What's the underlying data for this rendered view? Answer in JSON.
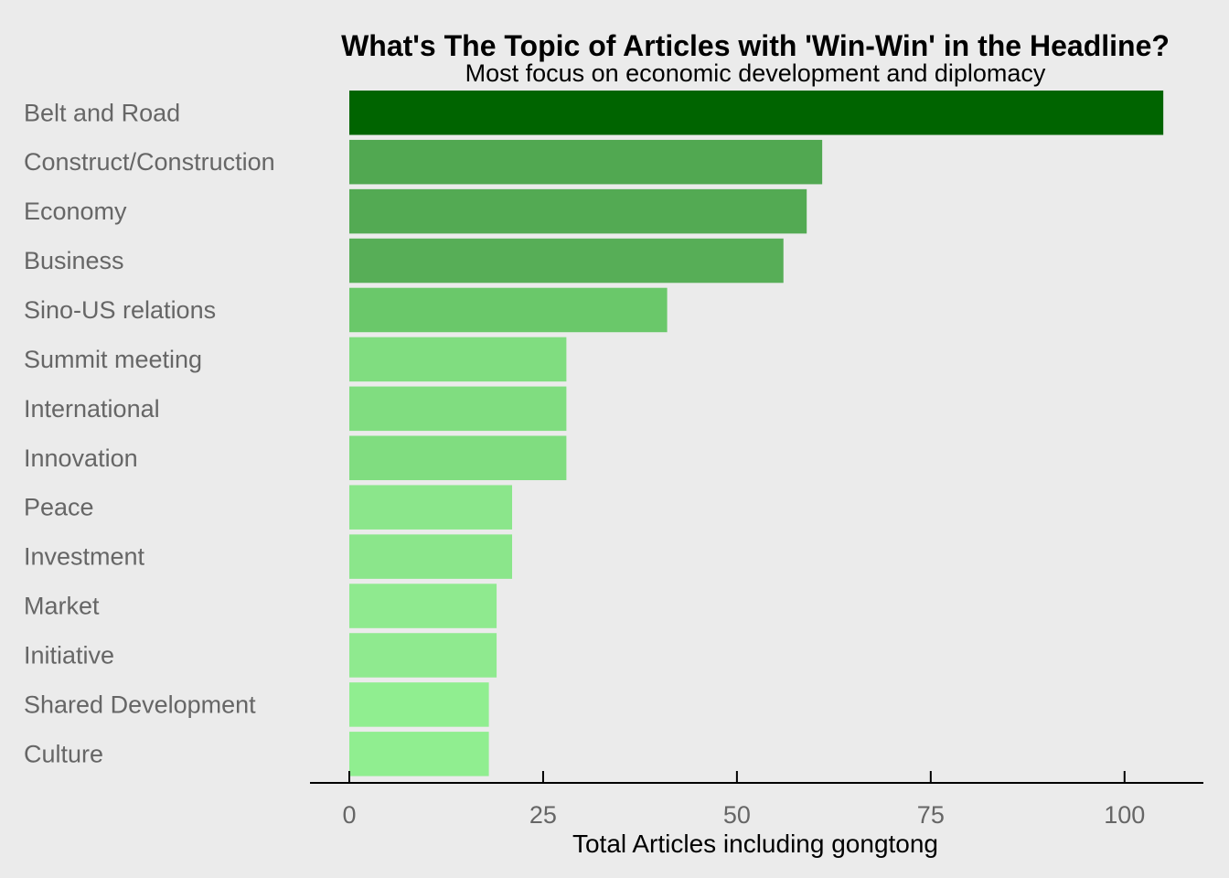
{
  "chart_data": {
    "type": "bar",
    "orientation": "horizontal",
    "title": "What's The Topic of Articles with 'Win-Win' in the Headline?",
    "subtitle": "Most focus on economic development and diplomacy",
    "xlabel": "Total Articles including gongtong",
    "ylabel": "",
    "xlim": [
      -5,
      110
    ],
    "x_ticks": [
      0,
      25,
      50,
      75,
      100
    ],
    "grid": false,
    "legend": "none",
    "categories": [
      "Belt and Road",
      "Construct/Construction",
      "Economy",
      "Business",
      "Sino-US relations",
      "Summit meeting",
      "International",
      "Innovation",
      "Peace",
      "Investment",
      "Market",
      "Initiative",
      "Shared Development",
      "Culture"
    ],
    "values": [
      105,
      61,
      59,
      56,
      41,
      28,
      28,
      28,
      21,
      21,
      19,
      19,
      18,
      18
    ],
    "colors": [
      "#006400",
      "#51a851",
      "#53aa53",
      "#57ae57",
      "#6ac86a",
      "#80dd80",
      "#80dd80",
      "#80dd80",
      "#8be68b",
      "#8be68b",
      "#8fea8f",
      "#8fea8f",
      "#90ee90",
      "#90ee90"
    ]
  },
  "colors": {
    "background": "#ebebeb",
    "axis_line": "#000000",
    "label_text": "#666666",
    "title_text": "#000000"
  }
}
